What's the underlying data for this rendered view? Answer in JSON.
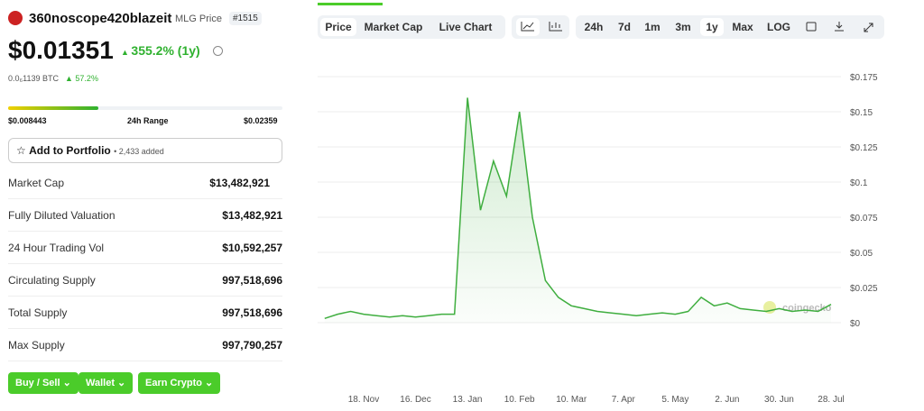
{
  "header": {
    "name": "360noscope420blazeit",
    "subtitle": "MLG Price",
    "rank": "#1515"
  },
  "price": "$0.01351",
  "change": "355.2% (1y)",
  "btc_price": "0.0₆1139 BTC",
  "btc_change": "57.2%",
  "range": {
    "low": "$0.008443",
    "label": "24h Range",
    "high": "$0.02359"
  },
  "portfolio": {
    "button": "Add to Portfolio",
    "count": "• 2,433 added"
  },
  "stats": [
    [
      "Market Cap",
      "$13,482,921"
    ],
    [
      "Fully Diluted Valuation",
      "$13,482,921"
    ],
    [
      "24 Hour Trading Vol",
      "$10,592,257"
    ],
    [
      "Circulating Supply",
      "997,518,696"
    ],
    [
      "Total Supply",
      "997,518,696"
    ],
    [
      "Max Supply",
      "997,790,257"
    ]
  ],
  "actions": [
    "Buy / Sell",
    "Wallet",
    "Earn Crypto"
  ],
  "tabs": [
    "Price",
    "Market Cap",
    "Live Chart"
  ],
  "ranges": [
    "24h",
    "7d",
    "1m",
    "3m",
    "1y",
    "Max",
    "LOG"
  ],
  "watermark": "coingecko",
  "chart_data": {
    "type": "line",
    "color": "#3fae3f",
    "categories": [
      null,
      null,
      null,
      "18. Nov",
      null,
      null,
      null,
      "16. Dec",
      null,
      null,
      null,
      "13. Jan",
      null,
      null,
      null,
      "10. Feb",
      null,
      null,
      null,
      "10. Mar",
      null,
      null,
      null,
      "7. Apr",
      null,
      null,
      null,
      "5. May",
      null,
      null,
      null,
      "2. Jun",
      null,
      null,
      null,
      "30. Jun",
      null,
      null,
      null,
      "28. Jul"
    ],
    "values": [
      0.003,
      0.006,
      0.008,
      0.006,
      0.005,
      0.004,
      0.005,
      0.004,
      0.005,
      0.006,
      0.006,
      0.16,
      0.08,
      0.115,
      0.09,
      0.15,
      0.075,
      0.03,
      0.018,
      0.012,
      0.01,
      0.008,
      0.007,
      0.006,
      0.005,
      0.006,
      0.007,
      0.006,
      0.008,
      0.018,
      0.012,
      0.014,
      0.01,
      0.009,
      0.008,
      0.01,
      0.008,
      0.009,
      0.008,
      0.013
    ],
    "ylim": [
      0,
      0.175
    ],
    "yticks": [
      {
        "value": 0,
        "label": "$0"
      },
      {
        "value": 0.025,
        "label": "$0.025"
      },
      {
        "value": 0.05,
        "label": "$0.05"
      },
      {
        "value": 0.075,
        "label": "$0.075"
      },
      {
        "value": 0.1,
        "label": "$0.1"
      },
      {
        "value": 0.125,
        "label": "$0.125"
      },
      {
        "value": 0.15,
        "label": "$0.15"
      },
      {
        "value": 0.175,
        "label": "$0.175"
      }
    ],
    "grid": true
  }
}
